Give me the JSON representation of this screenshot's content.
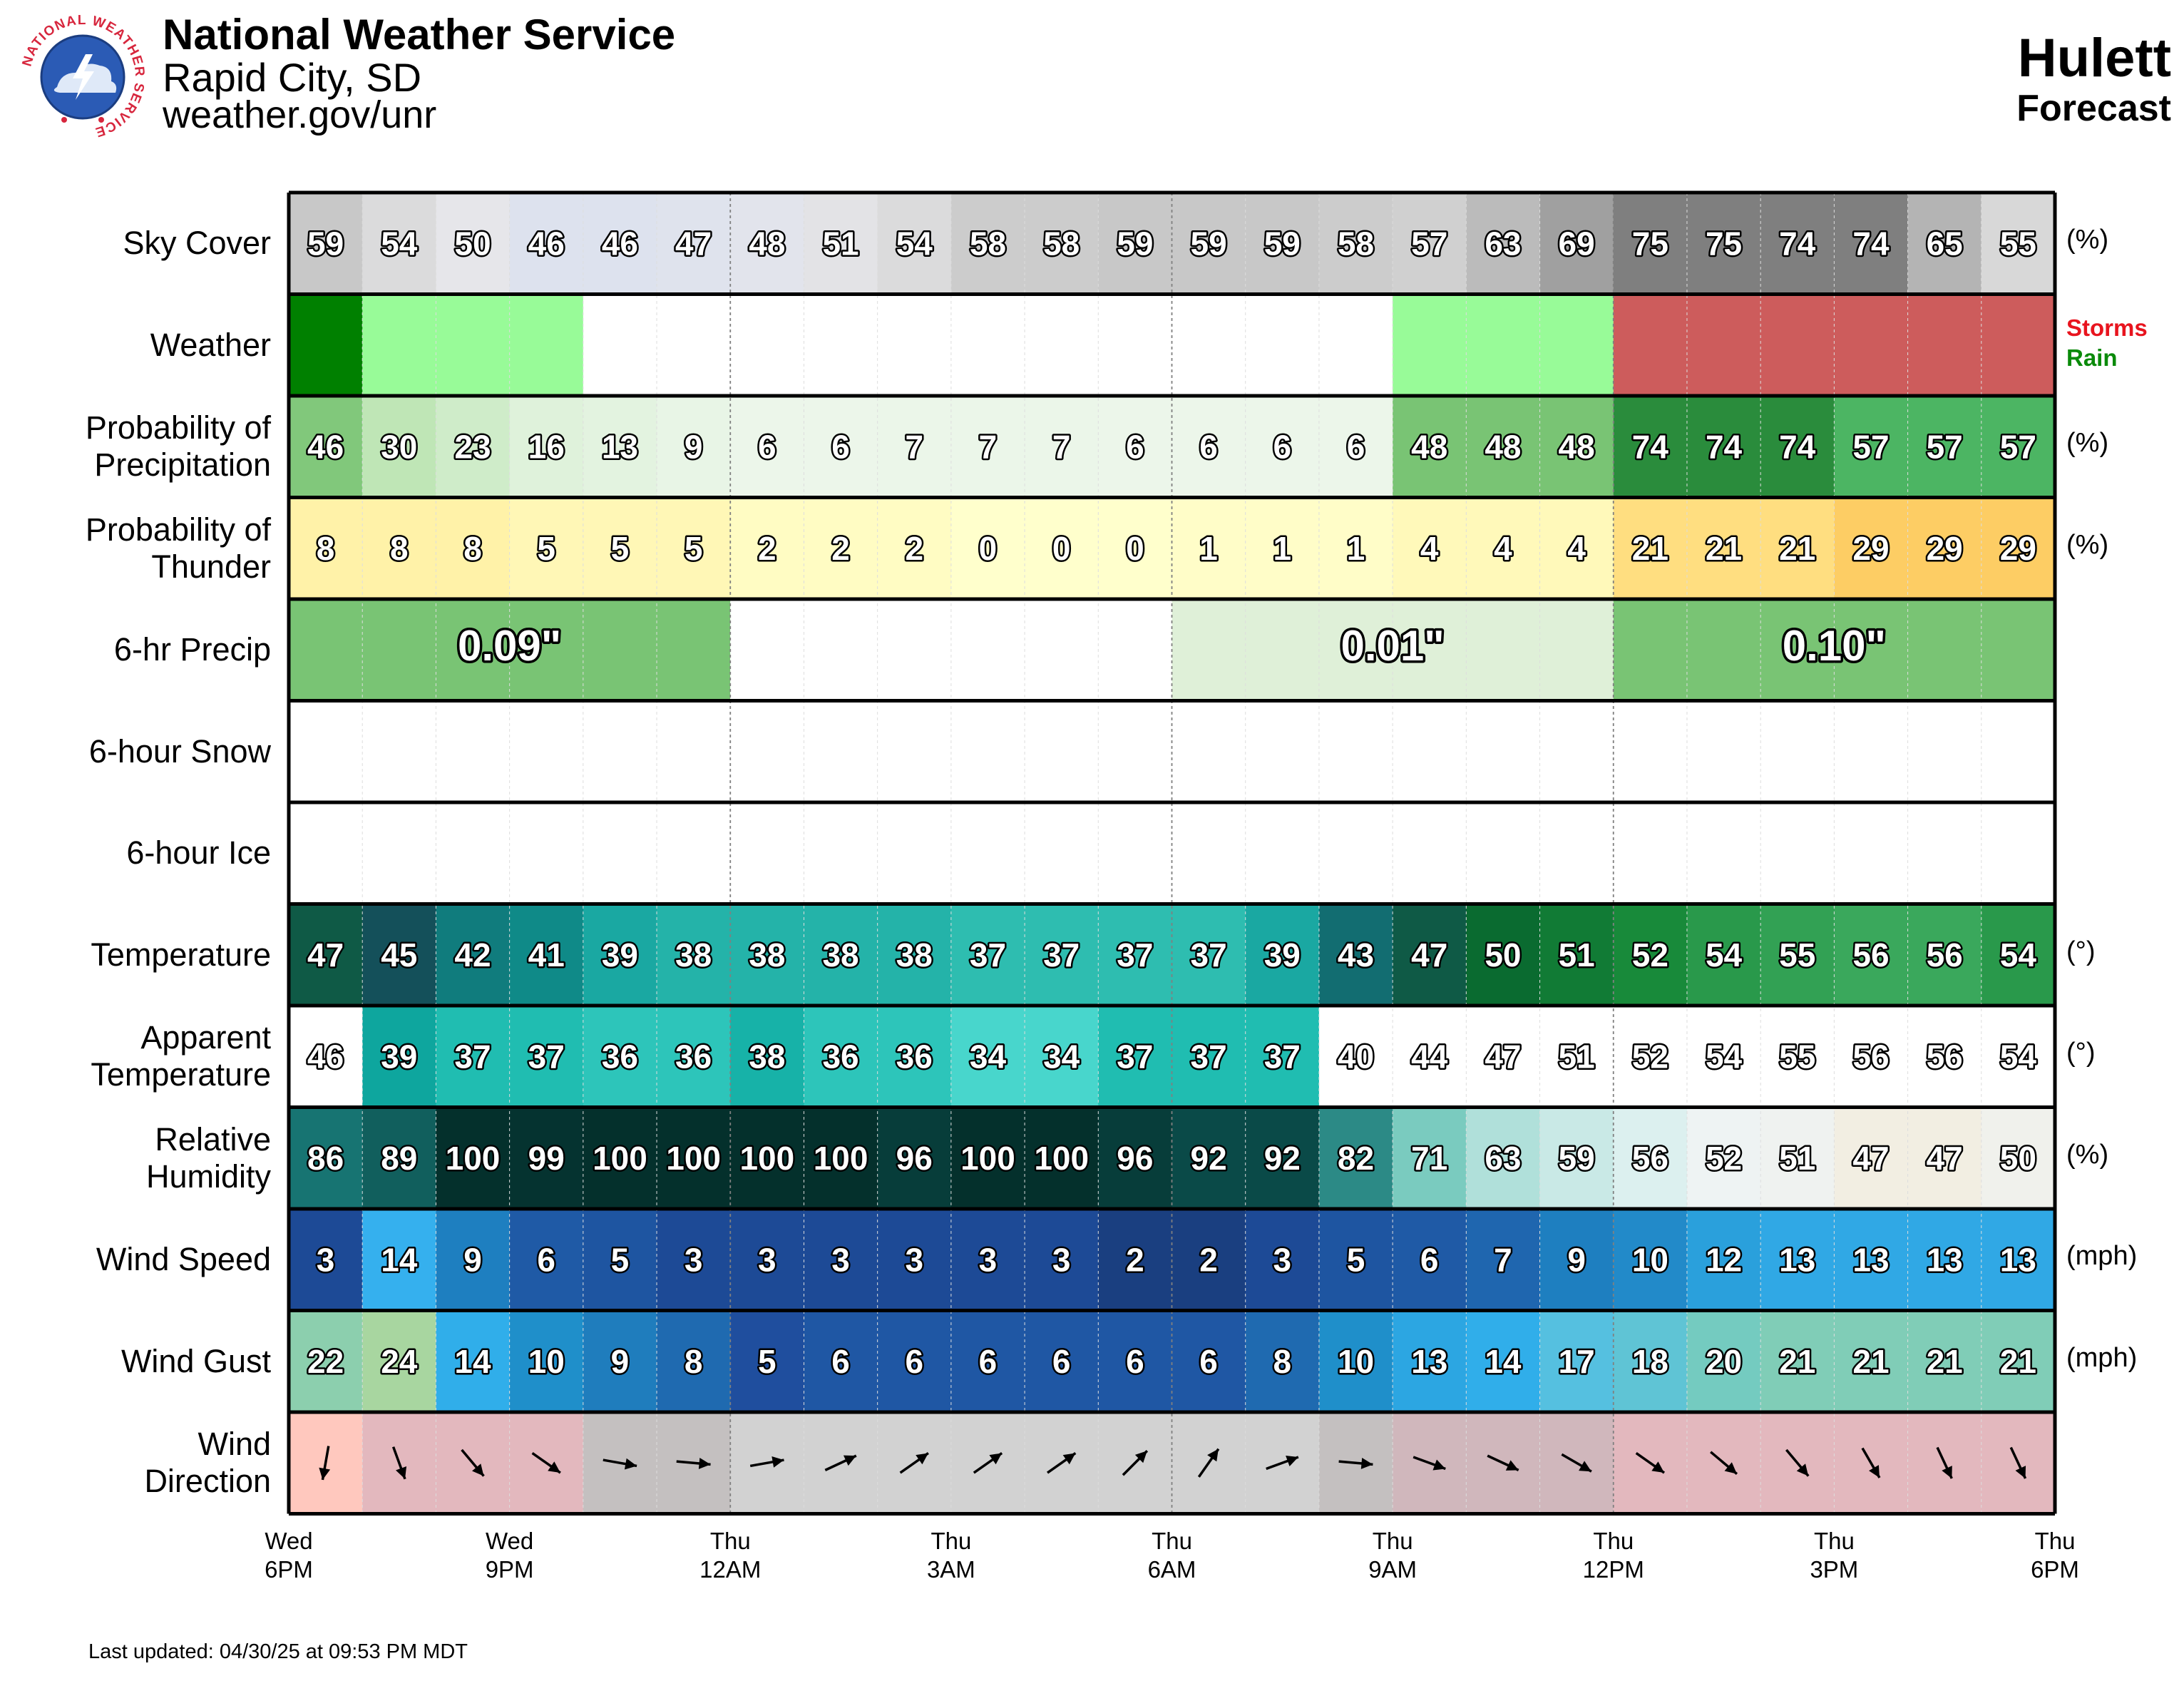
{
  "header": {
    "organization": "National Weather Service",
    "office": "Rapid City, SD",
    "url": "weather.gov/unr",
    "location": "Hulett",
    "subtitle": "Forecast",
    "logo_text": "NATIONAL WEATHER SERVICE"
  },
  "footer": {
    "last_updated": "Last updated: 04/30/25 at 09:53 PM MDT"
  },
  "colors": {
    "frame": "#000000",
    "weather_storms": "#cd5c5c",
    "weather_rain_heavy": "#008000",
    "weather_rain_light": "#98fb98",
    "legend_storms": "#e8141e",
    "legend_rain": "#0a8a0a"
  },
  "chart_data": {
    "type": "table",
    "time_axis": [
      {
        "day": "Wed",
        "time": "6PM"
      },
      {
        "day": "Wed",
        "time": "9PM"
      },
      {
        "day": "Thu",
        "time": "12AM"
      },
      {
        "day": "Thu",
        "time": "3AM"
      },
      {
        "day": "Thu",
        "time": "6AM"
      },
      {
        "day": "Thu",
        "time": "9AM"
      },
      {
        "day": "Thu",
        "time": "12PM"
      },
      {
        "day": "Thu",
        "time": "3PM"
      },
      {
        "day": "Thu",
        "time": "6PM"
      }
    ],
    "hours": 24,
    "rows": [
      {
        "id": "sky",
        "label": [
          "Sky Cover"
        ],
        "unit": "(%)",
        "values": [
          59,
          54,
          50,
          46,
          46,
          47,
          48,
          51,
          54,
          58,
          58,
          59,
          59,
          59,
          58,
          57,
          63,
          69,
          75,
          75,
          74,
          74,
          65,
          55
        ]
      },
      {
        "id": "weather",
        "label": [
          "Weather"
        ],
        "unit": "",
        "values": [
          "rain_heavy",
          "rain_light",
          "rain_light",
          "rain_light",
          "none",
          "none",
          "none",
          "none",
          "none",
          "none",
          "none",
          "none",
          "none",
          "none",
          "none",
          "rain_light",
          "rain_light",
          "rain_light",
          "storms",
          "storms",
          "storms",
          "storms",
          "storms",
          "storms"
        ],
        "legend": [
          "Storms",
          "Rain"
        ]
      },
      {
        "id": "pop",
        "label": [
          "Probability of",
          "Precipitation"
        ],
        "unit": "(%)",
        "values": [
          46,
          30,
          23,
          16,
          13,
          9,
          6,
          6,
          7,
          7,
          7,
          6,
          6,
          6,
          6,
          48,
          48,
          48,
          74,
          74,
          74,
          57,
          57,
          57
        ]
      },
      {
        "id": "thunder",
        "label": [
          "Probability of",
          "Thunder"
        ],
        "unit": "(%)",
        "values": [
          8,
          8,
          8,
          5,
          5,
          5,
          2,
          2,
          2,
          0,
          0,
          0,
          1,
          1,
          1,
          4,
          4,
          4,
          21,
          21,
          21,
          29,
          29,
          29
        ]
      },
      {
        "id": "qpf",
        "label": [
          "6-hr Precip"
        ],
        "unit": "",
        "blocks": [
          {
            "start": 0,
            "end": 6,
            "text": "0.09\""
          },
          {
            "start": 6,
            "end": 12,
            "text": ""
          },
          {
            "start": 12,
            "end": 18,
            "text": "0.01\""
          },
          {
            "start": 18,
            "end": 24,
            "text": "0.10\""
          }
        ]
      },
      {
        "id": "snow",
        "label": [
          "6-hour Snow"
        ],
        "unit": "",
        "blocks": []
      },
      {
        "id": "ice",
        "label": [
          "6-hour Ice"
        ],
        "unit": "",
        "blocks": []
      },
      {
        "id": "temp",
        "label": [
          "Temperature"
        ],
        "unit": "(°)",
        "values": [
          47,
          45,
          42,
          41,
          39,
          38,
          38,
          38,
          38,
          37,
          37,
          37,
          37,
          39,
          43,
          47,
          50,
          51,
          52,
          54,
          55,
          56,
          56,
          54
        ]
      },
      {
        "id": "apparent",
        "label": [
          "Apparent",
          "Temperature"
        ],
        "unit": "(°)",
        "values": [
          46,
          39,
          37,
          37,
          36,
          36,
          38,
          36,
          36,
          34,
          34,
          37,
          37,
          37,
          40,
          44,
          47,
          51,
          52,
          54,
          55,
          56,
          56,
          54
        ]
      },
      {
        "id": "rh",
        "label": [
          "Relative",
          "Humidity"
        ],
        "unit": "(%)",
        "values": [
          86,
          89,
          100,
          99,
          100,
          100,
          100,
          100,
          96,
          100,
          100,
          96,
          92,
          92,
          82,
          71,
          63,
          59,
          56,
          52,
          51,
          47,
          47,
          50
        ]
      },
      {
        "id": "wind",
        "label": [
          "Wind Speed"
        ],
        "unit": "(mph)",
        "values": [
          3,
          14,
          9,
          6,
          5,
          3,
          3,
          3,
          3,
          3,
          3,
          2,
          2,
          3,
          5,
          6,
          7,
          9,
          10,
          12,
          13,
          13,
          13,
          13
        ]
      },
      {
        "id": "gust",
        "label": [
          "Wind Gust"
        ],
        "unit": "(mph)",
        "values": [
          22,
          24,
          14,
          10,
          9,
          8,
          5,
          6,
          6,
          6,
          6,
          6,
          6,
          8,
          10,
          13,
          14,
          17,
          18,
          20,
          21,
          21,
          21,
          21
        ]
      },
      {
        "id": "dir",
        "label": [
          "Wind",
          "Direction"
        ],
        "unit": "",
        "values": [
          10,
          340,
          320,
          305,
          280,
          275,
          260,
          245,
          235,
          235,
          235,
          225,
          215,
          250,
          275,
          290,
          295,
          300,
          305,
          310,
          320,
          330,
          335,
          335
        ]
      }
    ]
  }
}
